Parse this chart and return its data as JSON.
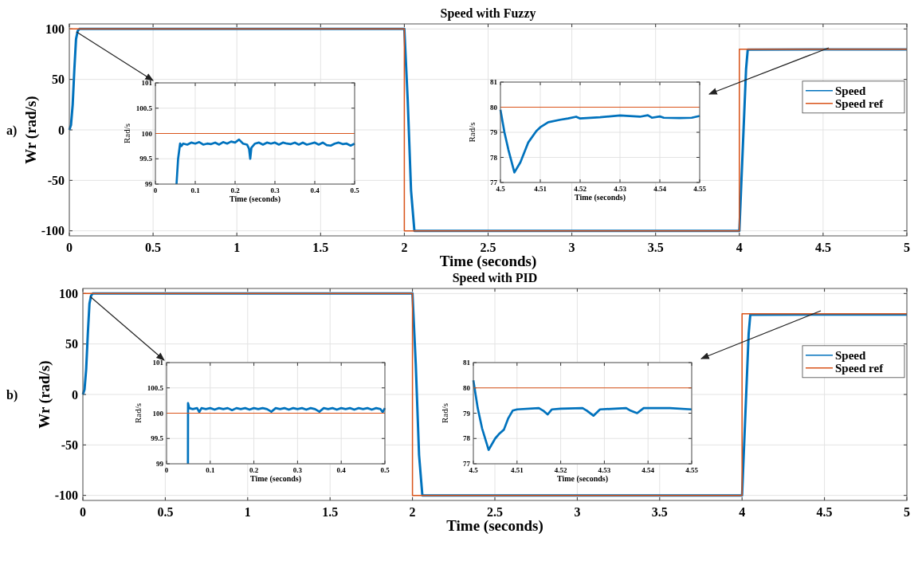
{
  "chart_data": [
    {
      "type": "line",
      "title": "Speed with Fuzzy",
      "xlabel": "Time (seconds)",
      "ylabel": "Wr (rad/s)",
      "annotations": [
        "a)"
      ],
      "xlim": [
        0,
        5
      ],
      "ylim": [
        -105,
        105
      ],
      "xticks": [
        0,
        0.5,
        1,
        1.5,
        2,
        2.5,
        3,
        3.5,
        4,
        4.5,
        5
      ],
      "yticks": [
        -100,
        -50,
        0,
        50,
        100
      ],
      "grid": true,
      "legend": "right",
      "series": [
        {
          "name": "Speed",
          "color": "#0072bd",
          "x": [
            0,
            0.01,
            0.02,
            0.03,
            0.04,
            0.05,
            0.06,
            2.0,
            2.02,
            2.04,
            2.06,
            4.0,
            4.02,
            4.04,
            4.05,
            4.5,
            5
          ],
          "values": [
            0,
            5,
            25,
            60,
            90,
            98,
            100,
            100,
            30,
            -60,
            -100,
            -100,
            -20,
            60,
            79.5,
            79.8,
            79.8
          ]
        },
        {
          "name": "Speed ref",
          "color": "#d95319",
          "x": [
            0,
            2,
            2,
            4,
            4,
            5
          ],
          "values": [
            100,
            100,
            -100,
            -100,
            80,
            80
          ]
        }
      ]
    },
    {
      "type": "line",
      "xlabel": "Time (seconds)",
      "ylabel": "Rad/s",
      "xlim": [
        0,
        0.5
      ],
      "ylim": [
        99,
        101
      ],
      "xticks": [
        0,
        0.1,
        0.2,
        0.3,
        0.4,
        0.5
      ],
      "yticks": [
        99,
        99.5,
        100,
        100.5,
        101
      ],
      "grid": true,
      "series": [
        {
          "color": "#0072bd",
          "x": [
            0.053,
            0.057,
            0.062,
            0.065,
            0.07,
            0.08,
            0.09,
            0.1,
            0.11,
            0.12,
            0.13,
            0.14,
            0.15,
            0.16,
            0.17,
            0.18,
            0.19,
            0.2,
            0.21,
            0.22,
            0.23,
            0.235,
            0.238,
            0.241,
            0.25,
            0.26,
            0.27,
            0.28,
            0.29,
            0.3,
            0.31,
            0.32,
            0.33,
            0.34,
            0.35,
            0.36,
            0.37,
            0.38,
            0.39,
            0.4,
            0.41,
            0.42,
            0.43,
            0.44,
            0.45,
            0.46,
            0.47,
            0.48,
            0.49,
            0.5
          ],
          "values": [
            99,
            99.5,
            99.8,
            99.75,
            99.8,
            99.78,
            99.82,
            99.8,
            99.83,
            99.78,
            99.8,
            99.79,
            99.82,
            99.78,
            99.83,
            99.8,
            99.84,
            99.82,
            99.88,
            99.8,
            99.78,
            99.7,
            99.5,
            99.72,
            99.8,
            99.82,
            99.78,
            99.82,
            99.8,
            99.82,
            99.78,
            99.82,
            99.8,
            99.79,
            99.82,
            99.78,
            99.82,
            99.78,
            99.8,
            99.82,
            99.78,
            99.82,
            99.77,
            99.76,
            99.8,
            99.82,
            99.79,
            99.8,
            99.76,
            99.8
          ]
        },
        {
          "color": "#d95319",
          "x": [
            0,
            0.5
          ],
          "values": [
            100,
            100
          ]
        }
      ]
    },
    {
      "type": "line",
      "xlabel": "Time (seconds)",
      "ylabel": "Rad/s",
      "xlim": [
        4.5,
        4.55
      ],
      "ylim": [
        77,
        81
      ],
      "xticks": [
        4.5,
        4.51,
        4.52,
        4.53,
        4.54,
        4.55
      ],
      "yticks": [
        77,
        78,
        79,
        80,
        81
      ],
      "grid": true,
      "series": [
        {
          "color": "#0072bd",
          "x": [
            4.5,
            4.501,
            4.502,
            4.5035,
            4.505,
            4.507,
            4.509,
            4.51,
            4.512,
            4.515,
            4.517,
            4.519,
            4.52,
            4.525,
            4.53,
            4.535,
            4.537,
            4.538,
            4.54,
            4.541,
            4.545,
            4.548,
            4.55
          ],
          "values": [
            79.9,
            79.0,
            78.3,
            77.4,
            77.8,
            78.6,
            79.05,
            79.2,
            79.4,
            79.5,
            79.55,
            79.62,
            79.55,
            79.6,
            79.67,
            79.62,
            79.68,
            79.58,
            79.63,
            79.58,
            79.57,
            79.58,
            79.65
          ]
        },
        {
          "color": "#d95319",
          "x": [
            4.5,
            4.55
          ],
          "values": [
            80,
            80
          ]
        }
      ]
    },
    {
      "type": "line",
      "title": "Speed with PID",
      "xlabel": "Time (seconds)",
      "ylabel": "Wr (rad/s)",
      "annotations": [
        "b)"
      ],
      "xlim": [
        0,
        5
      ],
      "ylim": [
        -105,
        105
      ],
      "xticks": [
        0,
        0.5,
        1,
        1.5,
        2,
        2.5,
        3,
        3.5,
        4,
        4.5,
        5
      ],
      "yticks": [
        -100,
        -50,
        0,
        50,
        100
      ],
      "grid": true,
      "legend": "right",
      "series": [
        {
          "name": "Speed",
          "color": "#0072bd",
          "x": [
            0,
            0.01,
            0.02,
            0.03,
            0.04,
            0.05,
            0.06,
            2.0,
            2.02,
            2.04,
            2.06,
            4.0,
            4.02,
            4.04,
            4.05,
            4.5,
            5
          ],
          "values": [
            0,
            5,
            25,
            60,
            90,
            98,
            100,
            100,
            30,
            -60,
            -100,
            -100,
            -20,
            60,
            79,
            79.2,
            79.2
          ]
        },
        {
          "name": "Speed ref",
          "color": "#d95319",
          "x": [
            0,
            2,
            2,
            4,
            4,
            5
          ],
          "values": [
            100,
            100,
            -100,
            -100,
            80,
            80
          ]
        }
      ]
    },
    {
      "type": "line",
      "xlabel": "Time (seconds)",
      "ylabel": "Rad/s",
      "xlim": [
        0,
        0.5
      ],
      "ylim": [
        99,
        101
      ],
      "xticks": [
        0,
        0.1,
        0.2,
        0.3,
        0.4,
        0.5
      ],
      "yticks": [
        99,
        99.5,
        100,
        100.5,
        101
      ],
      "grid": true,
      "series": [
        {
          "color": "#0072bd",
          "x": [
            0.049,
            0.0492,
            0.052,
            0.06,
            0.07,
            0.075,
            0.08,
            0.09,
            0.1,
            0.11,
            0.12,
            0.13,
            0.14,
            0.15,
            0.16,
            0.17,
            0.18,
            0.19,
            0.2,
            0.21,
            0.22,
            0.23,
            0.24,
            0.25,
            0.26,
            0.27,
            0.28,
            0.29,
            0.3,
            0.31,
            0.32,
            0.33,
            0.34,
            0.35,
            0.36,
            0.37,
            0.38,
            0.39,
            0.4,
            0.41,
            0.42,
            0.43,
            0.44,
            0.45,
            0.46,
            0.47,
            0.48,
            0.49,
            0.495,
            0.5
          ],
          "values": [
            99,
            100.2,
            100.1,
            100.08,
            100.1,
            100.02,
            100.1,
            100.08,
            100.1,
            100.07,
            100.1,
            100.08,
            100.1,
            100.06,
            100.1,
            100.08,
            100.1,
            100.07,
            100.1,
            100.08,
            100.1,
            100.08,
            100.03,
            100.1,
            100.08,
            100.1,
            100.07,
            100.1,
            100.08,
            100.1,
            100.07,
            100.1,
            100.08,
            100.03,
            100.1,
            100.08,
            100.1,
            100.07,
            100.1,
            100.08,
            100.1,
            100.07,
            100.1,
            100.08,
            100.1,
            100.07,
            100.1,
            100.08,
            100.02,
            100.1
          ]
        },
        {
          "color": "#d95319",
          "x": [
            0,
            0.5
          ],
          "values": [
            100,
            100
          ]
        }
      ]
    },
    {
      "type": "line",
      "xlabel": "Time (seconds)",
      "ylabel": "Rad/s",
      "xlim": [
        4.5,
        4.55
      ],
      "ylim": [
        77,
        81
      ],
      "xticks": [
        4.5,
        4.51,
        4.52,
        4.53,
        4.54,
        4.55
      ],
      "yticks": [
        77,
        78,
        79,
        80,
        81
      ],
      "grid": true,
      "series": [
        {
          "color": "#0072bd",
          "x": [
            4.5,
            4.501,
            4.502,
            4.5035,
            4.505,
            4.506,
            4.507,
            4.508,
            4.509,
            4.51,
            4.515,
            4.516,
            4.517,
            4.518,
            4.52,
            4.525,
            4.526,
            4.5275,
            4.529,
            4.535,
            4.536,
            4.5375,
            4.539,
            4.545,
            4.55
          ],
          "values": [
            80.3,
            79.2,
            78.4,
            77.55,
            78.0,
            78.2,
            78.35,
            78.8,
            79.1,
            79.15,
            79.2,
            79.1,
            78.95,
            79.15,
            79.18,
            79.2,
            79.1,
            78.9,
            79.15,
            79.2,
            79.1,
            79.0,
            79.2,
            79.2,
            79.15
          ]
        },
        {
          "color": "#d95319",
          "x": [
            4.5,
            4.55
          ],
          "values": [
            80,
            80
          ]
        }
      ]
    }
  ]
}
